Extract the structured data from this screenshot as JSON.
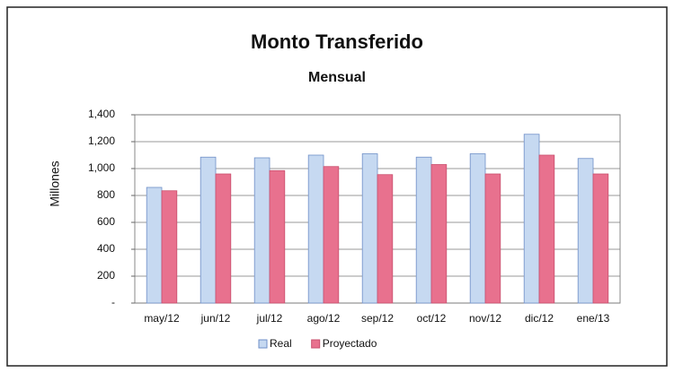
{
  "chart_data": {
    "type": "bar",
    "title": "Monto Transferido",
    "subtitle": "Mensual",
    "y_label": "Millones",
    "categories": [
      "may/12",
      "jun/12",
      "jul/12",
      "ago/12",
      "sep/12",
      "oct/12",
      "nov/12",
      "dic/12",
      "ene/13"
    ],
    "series": [
      {
        "name": "Real",
        "color": "#c6d9f1",
        "values": [
          860,
          1085,
          1080,
          1100,
          1110,
          1085,
          1110,
          1255,
          1075
        ]
      },
      {
        "name": "Proyectado",
        "color": "#e8718e",
        "values": [
          835,
          960,
          985,
          1015,
          955,
          1030,
          960,
          1100,
          960
        ]
      }
    ],
    "ylim": [
      0,
      1400
    ],
    "yticks": [
      {
        "value": 0,
        "label": "-"
      },
      200,
      400,
      600,
      800,
      {
        "value": 1000,
        "label": "1,000"
      },
      {
        "value": 1200,
        "label": "1,200"
      },
      {
        "value": 1400,
        "label": "1,400"
      }
    ],
    "grid": true,
    "legend": "bottom"
  }
}
